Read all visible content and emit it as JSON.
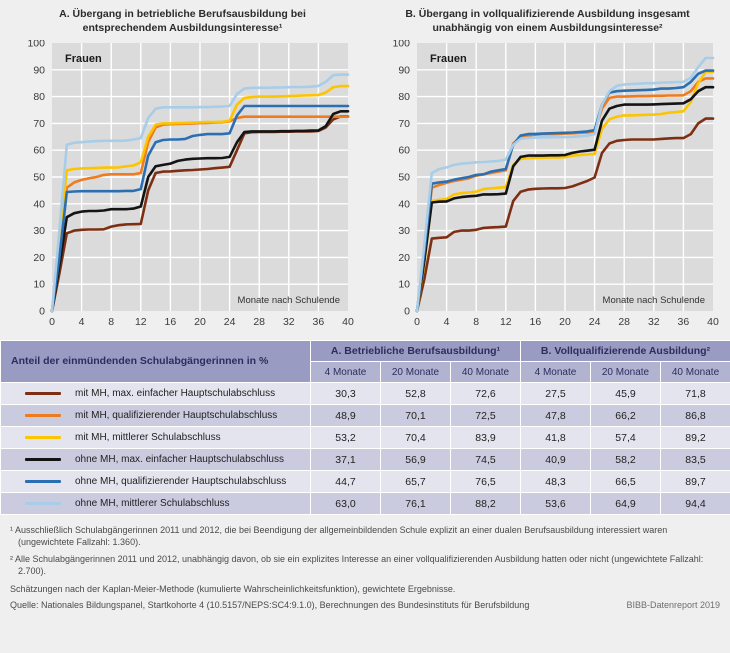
{
  "colors": {
    "page_bg": "#EFEFEF",
    "plot_bg": "#DBDBDB",
    "grid": "#FFFFFF",
    "axis_text": "#3a3a3a",
    "header_bg": "#999BC3",
    "subheader_bg": "#B2B3D1",
    "header_text": "#2D2D5E",
    "row_light": "#E4E4EF",
    "row_dark": "#CACBDE"
  },
  "chart_data": [
    {
      "type": "line",
      "title": "A. Übergang in betriebliche Berufsausbildung bei\nentsprechendem Ausbildungsinteresse¹",
      "inner_label": "Frauen",
      "x_axis_title": "Monate nach Schulende",
      "xlim": [
        0,
        40
      ],
      "ylim": [
        0,
        100
      ],
      "x_ticks": [
        0,
        4,
        8,
        12,
        16,
        20,
        24,
        28,
        32,
        36,
        40
      ],
      "y_ticks": [
        0,
        10,
        20,
        30,
        40,
        50,
        60,
        70,
        80,
        90,
        100
      ],
      "grid": true,
      "series": [
        {
          "id": "mit-mh-max-einfacher",
          "name": "mit MH, max. einfacher Hauptschulabschluss",
          "color": "#7E2F13",
          "values": [
            0,
            14,
            29,
            30,
            30.3,
            30.4,
            30.4,
            30.5,
            31.5,
            32,
            32.3,
            32.4,
            32.5,
            45,
            51.5,
            52,
            52.1,
            52.3,
            52.5,
            52.6,
            52.8,
            53,
            53.3,
            53.5,
            53.8,
            60,
            66.3,
            66.7,
            66.8,
            66.8,
            66.8,
            66.9,
            66.9,
            67,
            67,
            67,
            67.2,
            68.5,
            71.5,
            72.6,
            72.6
          ]
        },
        {
          "id": "mit-mh-qualifizierender",
          "name": "mit MH, qualifizierender Hauptschulabschluss",
          "color": "#EE7C1F",
          "values": [
            0,
            22,
            46,
            48,
            48.9,
            49.5,
            50,
            50.8,
            51,
            51,
            51,
            51,
            51.5,
            63,
            68.5,
            69.5,
            69.7,
            69.8,
            69.9,
            70,
            70.1,
            70.2,
            70.3,
            70.4,
            70.8,
            72,
            72.5,
            72.5,
            72.5,
            72.5,
            72.5,
            72.5,
            72.5,
            72.5,
            72.5,
            72.5,
            72.5,
            72.5,
            72.5,
            72.5,
            72.5
          ]
        },
        {
          "id": "mit-mh-mittlerer",
          "name": "mit MH, mittlerer Schulabschluss",
          "color": "#FDC400",
          "values": [
            0,
            25,
            52.5,
            53,
            53.2,
            53.3,
            53.4,
            53.5,
            53.5,
            53.6,
            54,
            54.3,
            55.5,
            65,
            69.5,
            70,
            70,
            70.1,
            70.2,
            70.3,
            70.4,
            70.5,
            70.5,
            70.6,
            71,
            77,
            79.5,
            79.8,
            80,
            80,
            80,
            80.1,
            80.2,
            80.3,
            80.4,
            80.5,
            80.6,
            81.5,
            83.5,
            83.9,
            83.9
          ]
        },
        {
          "id": "ohne-mh-max-einfacher",
          "name": "ohne MH, max. einfacher Hauptschulabschluss",
          "color": "#141414",
          "values": [
            0,
            17,
            35,
            36.5,
            37.1,
            37.3,
            37.3,
            37.5,
            38,
            38,
            38,
            38.2,
            39,
            50,
            54,
            54.5,
            55,
            56,
            56.5,
            56.8,
            56.9,
            57,
            57,
            57.1,
            57.5,
            63,
            66.8,
            67,
            67,
            67,
            67,
            67.1,
            67.1,
            67.2,
            67.2,
            67.3,
            67.4,
            69,
            73.5,
            74.5,
            74.5
          ]
        },
        {
          "id": "ohne-mh-qualifizierender",
          "name": "ohne MH, qualifizierender Hauptschulabschluss",
          "color": "#2B6FB2",
          "values": [
            0,
            20,
            44.4,
            44.6,
            44.7,
            44.7,
            44.7,
            44.7,
            44.7,
            44.7,
            44.8,
            44.8,
            45.5,
            58,
            63,
            63.8,
            64,
            64,
            64.2,
            65.3,
            65.7,
            66,
            66,
            66,
            66.3,
            73,
            76.5,
            76.5,
            76.5,
            76.5,
            76.5,
            76.5,
            76.5,
            76.5,
            76.5,
            76.5,
            76.5,
            76.5,
            76.5,
            76.5,
            76.5
          ]
        },
        {
          "id": "ohne-mh-mittlerer",
          "name": "ohne MH, mittlerer Schulabschluss",
          "color": "#A7CDE9",
          "values": [
            0,
            30,
            62,
            62.8,
            63,
            63.2,
            63.4,
            63.5,
            63.5,
            63.5,
            63.6,
            64,
            64.5,
            72,
            75.5,
            76,
            76,
            76,
            76,
            76,
            76.1,
            76.1,
            76.2,
            76.3,
            76.5,
            81,
            83,
            83.3,
            83.3,
            83.3,
            83.4,
            83.4,
            83.5,
            83.6,
            83.6,
            83.7,
            84,
            85.5,
            88,
            88.2,
            88.2
          ]
        }
      ]
    },
    {
      "type": "line",
      "title": "B. Übergang in vollqualifizierende Ausbildung insgesamt\nunabhängig von einem Ausbildungsinteresse²",
      "inner_label": "Frauen",
      "x_axis_title": "Monate nach Schulende",
      "xlim": [
        0,
        40
      ],
      "ylim": [
        0,
        100
      ],
      "x_ticks": [
        0,
        4,
        8,
        12,
        16,
        20,
        24,
        28,
        32,
        36,
        40
      ],
      "y_ticks": [
        0,
        10,
        20,
        30,
        40,
        50,
        60,
        70,
        80,
        90,
        100
      ],
      "grid": true,
      "series": [
        {
          "id": "mit-mh-max-einfacher",
          "name": "mit MH, max. einfacher Hauptschulabschluss",
          "color": "#7E2F13",
          "values": [
            0,
            12,
            27,
            27.3,
            27.5,
            29.5,
            30,
            30,
            30.3,
            31,
            31.2,
            31.3,
            31.5,
            41,
            44.5,
            45.3,
            45.6,
            45.7,
            45.8,
            45.8,
            45.9,
            46.5,
            47.5,
            48.5,
            49.8,
            59,
            62.5,
            63.5,
            63.8,
            64,
            64,
            64,
            64,
            64.2,
            64.4,
            64.5,
            64.5,
            66,
            70,
            71.8,
            71.8
          ]
        },
        {
          "id": "mit-mh-qualifizierender",
          "name": "mit MH, qualifizierender Hauptschulabschluss",
          "color": "#EE7C1F",
          "values": [
            0,
            21,
            46,
            47,
            47.8,
            48.5,
            49,
            49.5,
            50.5,
            51,
            51.5,
            52,
            52.5,
            62.5,
            64.8,
            65.5,
            65.8,
            66,
            66,
            66.1,
            66.2,
            66.3,
            66.5,
            66.6,
            67,
            75.5,
            79.5,
            80,
            80,
            80.1,
            80.2,
            80.2,
            80.3,
            80.3,
            80.4,
            80.4,
            80.5,
            82,
            85.5,
            86.8,
            86.8
          ]
        },
        {
          "id": "mit-mh-mittlerer",
          "name": "mit MH, mittlerer Schulabschluss",
          "color": "#FDC400",
          "values": [
            0,
            18,
            41,
            41.5,
            41.8,
            43.5,
            44,
            44.2,
            44.5,
            45.5,
            45.8,
            46,
            46.2,
            54.5,
            56.8,
            57,
            57.1,
            57.2,
            57.3,
            57.3,
            57.4,
            58,
            58.2,
            58.4,
            58.6,
            68,
            71.5,
            72.5,
            73,
            73,
            73.1,
            73.2,
            73.3,
            73.5,
            74,
            74.2,
            74.5,
            78,
            85,
            89.2,
            89.2
          ]
        },
        {
          "id": "ohne-mh-max-einfacher",
          "name": "ohne MH, max. einfacher Hauptschulabschluss",
          "color": "#141414",
          "values": [
            0,
            19,
            40.5,
            40.8,
            40.9,
            42,
            42.5,
            42.8,
            43,
            43.5,
            43.5,
            43.6,
            43.8,
            54,
            57.5,
            58,
            58,
            58,
            58.1,
            58.1,
            58.2,
            59,
            59.5,
            59.8,
            60.2,
            71,
            75.5,
            76.5,
            77,
            77,
            77,
            77,
            77.1,
            77.2,
            77.3,
            77.4,
            77.5,
            79,
            82,
            83.5,
            83.5
          ]
        },
        {
          "id": "ohne-mh-qualifizierender",
          "name": "ohne MH, qualifizierender Hauptschulabschluss",
          "color": "#2B6FB2",
          "values": [
            0,
            22,
            47.5,
            48,
            48.3,
            49,
            49.5,
            50,
            50.8,
            51,
            52,
            52.5,
            53,
            62,
            65.5,
            66,
            66.1,
            66.2,
            66.3,
            66.4,
            66.5,
            66.6,
            66.8,
            67,
            67.5,
            77,
            81.5,
            82,
            82.2,
            82.3,
            82.4,
            82.5,
            82.6,
            83,
            83,
            83.2,
            83.5,
            85.5,
            88.5,
            89.7,
            89.7
          ]
        },
        {
          "id": "ohne-mh-mittlerer",
          "name": "ohne MH, mittlerer Schulabschluss",
          "color": "#A7CDE9",
          "values": [
            0,
            25,
            51.5,
            53,
            53.6,
            54.5,
            55,
            55.2,
            55.5,
            55.6,
            55.8,
            56,
            56.5,
            62,
            64.3,
            64.6,
            64.7,
            64.8,
            64.8,
            64.9,
            64.9,
            65,
            65.2,
            65.4,
            66,
            77,
            82,
            84,
            84.5,
            84.7,
            84.8,
            85,
            85,
            85.2,
            85.3,
            85.4,
            85.5,
            87,
            91,
            94.4,
            94.4
          ]
        }
      ]
    }
  ],
  "table": {
    "corner_label": "Anteil der einmündenden Schulabgängerinnen in %",
    "groups": [
      {
        "label": "A. Betriebliche Berufsausbildung¹"
      },
      {
        "label": "B. Vollqualifizierende Ausbildung²"
      }
    ],
    "subheaders": [
      "4 Monate",
      "20 Monate",
      "40 Monate",
      "4 Monate",
      "20 Monate",
      "40 Monate"
    ],
    "rows": [
      {
        "label": "mit MH, max. einfacher Hauptschulabschluss",
        "color": "#7E2F13",
        "values": [
          "30,3",
          "52,8",
          "72,6",
          "27,5",
          "45,9",
          "71,8"
        ]
      },
      {
        "label": "mit MH, qualifizierender Hauptschulabschluss",
        "color": "#EE7C1F",
        "values": [
          "48,9",
          "70,1",
          "72,5",
          "47,8",
          "66,2",
          "86,8"
        ]
      },
      {
        "label": "mit MH, mittlerer Schulabschluss",
        "color": "#FDC400",
        "values": [
          "53,2",
          "70,4",
          "83,9",
          "41,8",
          "57,4",
          "89,2"
        ]
      },
      {
        "label": "ohne MH, max. einfacher Hauptschulabschluss",
        "color": "#141414",
        "values": [
          "37,1",
          "56,9",
          "74,5",
          "40,9",
          "58,2",
          "83,5"
        ]
      },
      {
        "label": "ohne MH, qualifizierender Hauptschulabschluss",
        "color": "#2B6FB2",
        "values": [
          "44,7",
          "65,7",
          "76,5",
          "48,3",
          "66,5",
          "89,7"
        ]
      },
      {
        "label": "ohne MH, mittlerer Schulabschluss",
        "color": "#A7CDE9",
        "values": [
          "63,0",
          "76,1",
          "88,2",
          "53,6",
          "64,9",
          "94,4"
        ]
      }
    ]
  },
  "footnotes": [
    "¹ Ausschließlich Schulabgängerinnen 2011 und 2012, die bei Beendigung der allgemeinbildenden Schule explizit an einer dualen Berufsausbildung interessiert waren (ungewichtete Fallzahl: 1.360).",
    "² Alle Schulabgängerinnen 2011 und 2012, unabhängig davon, ob sie ein explizites Interesse an einer vollqualifizierenden Ausbildung hatten oder nicht (ungewichtete Fallzahl: 2.700).",
    "Schätzungen nach der Kaplan-Meier-Methode (kumulierte Wahrscheinlichkeitsfunktion), gewichtete Ergebnisse."
  ],
  "source": "Quelle: Nationales Bildungspanel, Startkohorte 4 (10.5157/NEPS:SC4:9.1.0), Berechnungen des Bundesinstituts für Berufsbildung",
  "report_label": "BIBB-Datenreport 2019"
}
